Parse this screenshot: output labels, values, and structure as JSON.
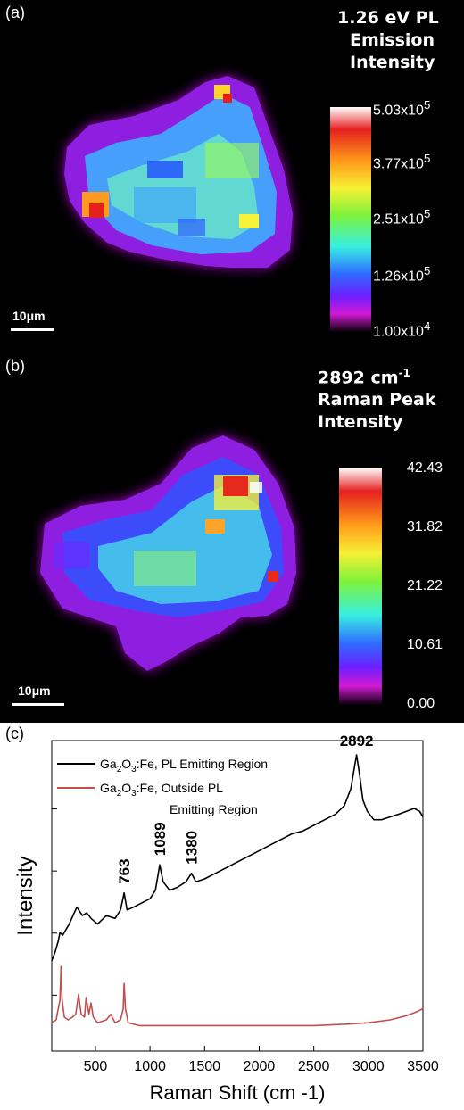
{
  "panel_a": {
    "label": "(a)",
    "title_lines": [
      "1.26 eV PL",
      "Emission",
      "Intensity"
    ],
    "colorbar_ticks": [
      {
        "mantissa": "5.03x10",
        "exp": "5"
      },
      {
        "mantissa": "3.77x10",
        "exp": "5"
      },
      {
        "mantissa": "2.51x10",
        "exp": "5"
      },
      {
        "mantissa": "1.26x10",
        "exp": "5"
      },
      {
        "mantissa": "1.00x10",
        "exp": "4"
      }
    ],
    "scalebar": "10μm"
  },
  "panel_b": {
    "label": "(b)",
    "title_line1_prefix": "2892 cm",
    "title_line1_sup": "-1",
    "title_lines": [
      "Raman Peak",
      "Intensity"
    ],
    "colorbar_ticks": [
      "42.43",
      "31.82",
      "21.22",
      "10.61",
      "0.00"
    ],
    "scalebar": "10μm"
  },
  "panel_c": {
    "label": "(c)",
    "chart_data": {
      "type": "line",
      "xlabel": "Raman Shift (cm -1)",
      "ylabel": "Intensity",
      "xlim": [
        100,
        3500
      ],
      "xticks": [
        500,
        1000,
        1500,
        2000,
        2500,
        3000,
        3500
      ],
      "series": [
        {
          "name": "Ga2O3:Fe, PL Emitting Region",
          "color": "#000000",
          "points": [
            [
              100,
              0.27
            ],
            [
              130,
              0.3
            ],
            [
              160,
              0.34
            ],
            [
              175,
              0.37
            ],
            [
              200,
              0.36
            ],
            [
              260,
              0.4
            ],
            [
              330,
              0.46
            ],
            [
              380,
              0.43
            ],
            [
              420,
              0.44
            ],
            [
              460,
              0.42
            ],
            [
              520,
              0.4
            ],
            [
              600,
              0.43
            ],
            [
              680,
              0.42
            ],
            [
              730,
              0.45
            ],
            [
              763,
              0.51
            ],
            [
              790,
              0.45
            ],
            [
              850,
              0.46
            ],
            [
              950,
              0.48
            ],
            [
              1000,
              0.49
            ],
            [
              1050,
              0.52
            ],
            [
              1089,
              0.61
            ],
            [
              1120,
              0.55
            ],
            [
              1180,
              0.52
            ],
            [
              1250,
              0.53
            ],
            [
              1330,
              0.55
            ],
            [
              1380,
              0.58
            ],
            [
              1420,
              0.55
            ],
            [
              1500,
              0.56
            ],
            [
              1600,
              0.58
            ],
            [
              1700,
              0.6
            ],
            [
              1800,
              0.62
            ],
            [
              1900,
              0.64
            ],
            [
              2000,
              0.66
            ],
            [
              2100,
              0.68
            ],
            [
              2200,
              0.7
            ],
            [
              2300,
              0.72
            ],
            [
              2400,
              0.73
            ],
            [
              2500,
              0.75
            ],
            [
              2600,
              0.77
            ],
            [
              2700,
              0.79
            ],
            [
              2780,
              0.82
            ],
            [
              2840,
              0.88
            ],
            [
              2870,
              0.95
            ],
            [
              2892,
              1.0
            ],
            [
              2920,
              0.93
            ],
            [
              2950,
              0.84
            ],
            [
              2990,
              0.8
            ],
            [
              3050,
              0.77
            ],
            [
              3120,
              0.77
            ],
            [
              3200,
              0.78
            ],
            [
              3280,
              0.79
            ],
            [
              3350,
              0.8
            ],
            [
              3420,
              0.81
            ],
            [
              3470,
              0.8
            ],
            [
              3500,
              0.78
            ]
          ]
        },
        {
          "name": "Ga2O3:Fe, Outside PL Emitting Region",
          "color": "#c0504d",
          "points": [
            [
              100,
              0.05
            ],
            [
              140,
              0.06
            ],
            [
              160,
              0.1
            ],
            [
              175,
              0.13
            ],
            [
              185,
              0.25
            ],
            [
              195,
              0.13
            ],
            [
              215,
              0.07
            ],
            [
              250,
              0.06
            ],
            [
              290,
              0.07
            ],
            [
              320,
              0.08
            ],
            [
              345,
              0.15
            ],
            [
              370,
              0.08
            ],
            [
              400,
              0.07
            ],
            [
              415,
              0.14
            ],
            [
              440,
              0.08
            ],
            [
              460,
              0.12
            ],
            [
              480,
              0.07
            ],
            [
              520,
              0.05
            ],
            [
              600,
              0.06
            ],
            [
              640,
              0.08
            ],
            [
              680,
              0.05
            ],
            [
              730,
              0.06
            ],
            [
              755,
              0.1
            ],
            [
              763,
              0.19
            ],
            [
              775,
              0.1
            ],
            [
              800,
              0.05
            ],
            [
              900,
              0.04
            ],
            [
              1100,
              0.04
            ],
            [
              1500,
              0.04
            ],
            [
              2000,
              0.04
            ],
            [
              2500,
              0.04
            ],
            [
              2800,
              0.045
            ],
            [
              3000,
              0.05
            ],
            [
              3200,
              0.06
            ],
            [
              3350,
              0.075
            ],
            [
              3450,
              0.09
            ],
            [
              3500,
              0.1
            ]
          ]
        }
      ],
      "annotations": [
        {
          "text": "2892",
          "x": 2892
        },
        {
          "text": "1089",
          "x": 1089
        },
        {
          "text": "1380",
          "x": 1380
        },
        {
          "text": "763",
          "x": 763
        }
      ],
      "legend_lines": [
        {
          "prefix": "Ga",
          "sub1": "2",
          "mid": "O",
          "sub2": "3",
          "suffix": ":Fe, PL Emitting Region"
        },
        {
          "prefix": "Ga",
          "sub1": "2",
          "mid": "O",
          "sub2": "3",
          "suffix": ":Fe, Outside PL"
        }
      ],
      "legend_continuation": "Emitting Region",
      "legend_placement": "top-left"
    }
  }
}
